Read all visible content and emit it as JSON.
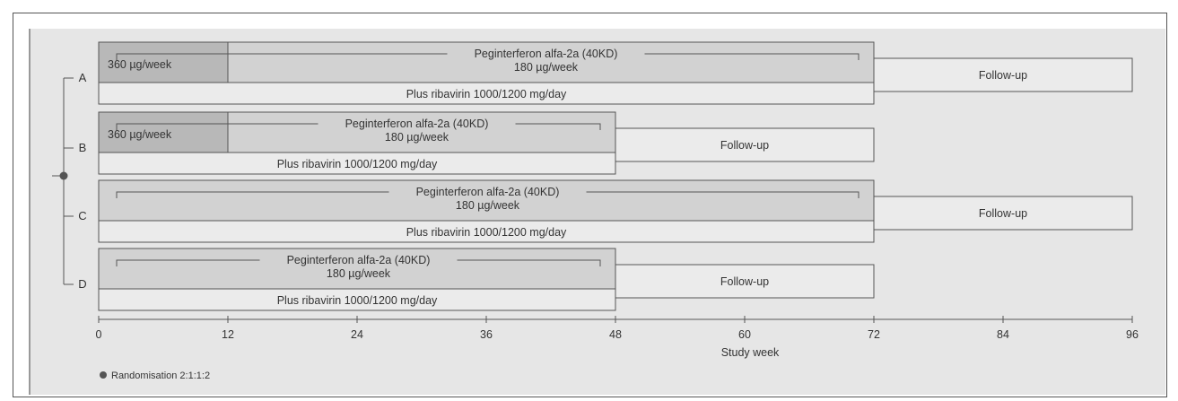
{
  "arms": [
    {
      "letter": "A",
      "induction_dose": "360 µg/week",
      "drug": "Peginterferon alfa-2a (40KD)",
      "dose": "180 µg/week",
      "ribavirin": "Plus ribavirin 1000/1200 mg/day",
      "followup": "Follow-up",
      "treatment_end_week": 72,
      "induction_end_week": 12,
      "followup_end_week": 96
    },
    {
      "letter": "B",
      "induction_dose": "360 µg/week",
      "drug": "Peginterferon alfa-2a (40KD)",
      "dose": "180 µg/week",
      "ribavirin": "Plus ribavirin 1000/1200 mg/day",
      "followup": "Follow-up",
      "treatment_end_week": 48,
      "induction_end_week": 12,
      "followup_end_week": 72
    },
    {
      "letter": "C",
      "induction_dose": "",
      "drug": "Peginterferon alfa-2a (40KD)",
      "dose": "180 µg/week",
      "ribavirin": "Plus ribavirin 1000/1200 mg/day",
      "followup": "Follow-up",
      "treatment_end_week": 72,
      "induction_end_week": 0,
      "followup_end_week": 96
    },
    {
      "letter": "D",
      "induction_dose": "",
      "drug": "Peginterferon alfa-2a (40KD)",
      "dose": "180 µg/week",
      "ribavirin": "Plus ribavirin 1000/1200 mg/day",
      "followup": "Follow-up",
      "treatment_end_week": 48,
      "induction_end_week": 0,
      "followup_end_week": 72
    }
  ],
  "axis": {
    "label": "Study week",
    "ticks": [
      "0",
      "12",
      "24",
      "36",
      "48",
      "60",
      "72",
      "84",
      "96"
    ],
    "min": 0,
    "max": 96
  },
  "legend": {
    "label": "Randomisation 2:1:1:2"
  },
  "colors": {
    "induction": "#b8b8b8",
    "treatment": "#d2d2d2",
    "ribavirin": "#ebebeb",
    "followup": "#ebebeb",
    "panel": "#e6e6e6",
    "line": "#555555"
  }
}
